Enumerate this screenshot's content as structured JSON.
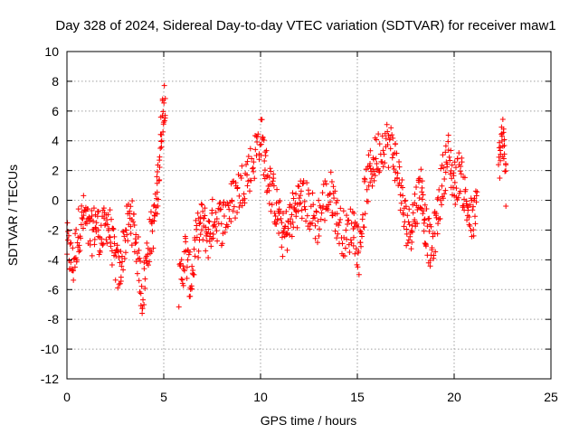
{
  "chart_data": {
    "type": "scatter",
    "title": "Day 328 of 2024, Sidereal Day-to-day VTEC variation (SDTVAR) for receiver maw1",
    "xlabel": "GPS time / hours",
    "ylabel": "SDTVAR / TECUs",
    "xlim": [
      0,
      25
    ],
    "ylim": [
      -12,
      10
    ],
    "xticks": [
      0,
      5,
      10,
      15,
      20,
      25
    ],
    "yticks": [
      -12,
      -10,
      -8,
      -6,
      -4,
      -2,
      0,
      2,
      4,
      6,
      8,
      10
    ],
    "grid": true,
    "marker": "+",
    "color": "#ff0000",
    "trend": [
      [
        0.0,
        -3.0
      ],
      [
        0.3,
        -4.5
      ],
      [
        0.6,
        -2.0
      ],
      [
        0.9,
        -1.0
      ],
      [
        1.2,
        -2.5
      ],
      [
        1.5,
        -1.5
      ],
      [
        1.8,
        -2.5
      ],
      [
        2.1,
        -1.2
      ],
      [
        2.4,
        -3.5
      ],
      [
        2.7,
        -5.0
      ],
      [
        3.0,
        -2.5
      ],
      [
        3.3,
        -1.0
      ],
      [
        3.6,
        -3.0
      ],
      [
        3.9,
        -6.5
      ],
      [
        4.2,
        -3.0
      ],
      [
        4.5,
        -1.5
      ],
      [
        4.7,
        1.0
      ],
      [
        4.9,
        5.5
      ],
      [
        5.1,
        7.5
      ],
      [
        5.8,
        -6.0
      ],
      [
        6.1,
        -3.5
      ],
      [
        6.4,
        -5.5
      ],
      [
        6.7,
        -2.5
      ],
      [
        7.0,
        -1.5
      ],
      [
        7.3,
        -2.5
      ],
      [
        7.6,
        -1.0
      ],
      [
        8.0,
        -1.5
      ],
      [
        8.4,
        -0.5
      ],
      [
        8.8,
        0.5
      ],
      [
        9.2,
        1.5
      ],
      [
        9.6,
        2.5
      ],
      [
        10.0,
        4.5
      ],
      [
        10.3,
        2.0
      ],
      [
        10.6,
        0.5
      ],
      [
        10.9,
        -1.0
      ],
      [
        11.2,
        -2.5
      ],
      [
        11.5,
        -1.5
      ],
      [
        11.8,
        -0.5
      ],
      [
        12.1,
        0.2
      ],
      [
        12.5,
        -0.5
      ],
      [
        12.9,
        -1.5
      ],
      [
        13.3,
        0.0
      ],
      [
        13.7,
        0.5
      ],
      [
        14.0,
        -1.5
      ],
      [
        14.4,
        -2.5
      ],
      [
        14.8,
        -1.5
      ],
      [
        15.1,
        -3.5
      ],
      [
        15.4,
        0.5
      ],
      [
        15.7,
        2.0
      ],
      [
        16.0,
        3.0
      ],
      [
        16.4,
        4.0
      ],
      [
        16.8,
        3.5
      ],
      [
        17.1,
        2.0
      ],
      [
        17.4,
        -1.0
      ],
      [
        17.7,
        -2.0
      ],
      [
        18.0,
        -0.5
      ],
      [
        18.3,
        1.0
      ],
      [
        18.5,
        -1.5
      ],
      [
        18.8,
        -3.5
      ],
      [
        19.1,
        -1.5
      ],
      [
        19.4,
        1.5
      ],
      [
        19.7,
        3.0
      ],
      [
        20.0,
        1.0
      ],
      [
        20.3,
        2.0
      ],
      [
        20.6,
        0.0
      ],
      [
        20.9,
        -1.5
      ],
      [
        21.2,
        -0.5
      ],
      [
        22.3,
        2.5
      ],
      [
        22.5,
        4.5
      ],
      [
        22.7,
        0.5
      ]
    ]
  }
}
